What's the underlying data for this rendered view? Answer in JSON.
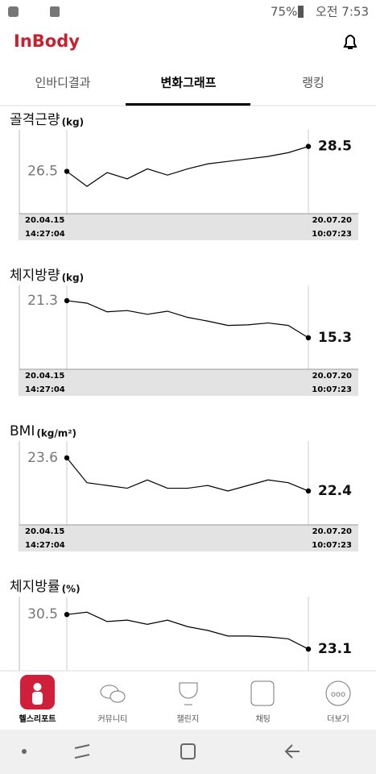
{
  "status_bar": {
    "battery": "75%",
    "time": "오전 7:53"
  },
  "header": {
    "logo": "InBody"
  },
  "tabs": [
    "인바디결과",
    "변화그래프",
    "랭킹"
  ],
  "chart_data": [
    {
      "type": "line",
      "title": "골격근량",
      "unit": "(kg)",
      "color": "#000000",
      "values": [
        26.5,
        25.3,
        26.4,
        25.9,
        26.7,
        26.2,
        26.7,
        27.1,
        27.3,
        27.5,
        27.7,
        28.0,
        28.5
      ],
      "ylim": [
        23.3,
        29.9
      ],
      "start": {
        "date": "20.04.15",
        "time": "14:27:04"
      },
      "end": {
        "date": "20.07.20",
        "time": "10:07:23"
      }
    },
    {
      "type": "line",
      "title": "체지방량",
      "unit": "(kg)",
      "color": "#000000",
      "values": [
        21.3,
        20.9,
        19.5,
        19.7,
        19.1,
        19.6,
        18.6,
        18.0,
        17.3,
        17.4,
        17.7,
        17.3,
        15.3
      ],
      "ylim": [
        10.6,
        23.9
      ],
      "start": {
        "date": "20.04.15",
        "time": "14:27:04"
      },
      "end": {
        "date": "20.07.20",
        "time": "10:07:23"
      }
    },
    {
      "type": "line",
      "title": "BMI",
      "unit": "(kg/m²)",
      "color": "#000000",
      "values": [
        23.6,
        22.7,
        22.6,
        22.5,
        22.8,
        22.5,
        22.5,
        22.6,
        22.4,
        22.6,
        22.8,
        22.7,
        22.4
      ],
      "ylim": [
        21.26,
        24.24
      ],
      "start": {
        "date": "20.04.15",
        "time": "14:27:04"
      },
      "end": {
        "date": "20.07.20",
        "time": "10:07:23"
      }
    },
    {
      "type": "line",
      "title": "체지방률",
      "unit": "(%)",
      "color": "#000000",
      "values": [
        30.5,
        31.0,
        29.0,
        29.3,
        28.4,
        29.3,
        27.9,
        27.1,
        25.9,
        25.9,
        25.7,
        25.3,
        23.1
      ],
      "ylim": [
        16.9,
        34.5
      ]
    }
  ],
  "nav": [
    "헬스리포트",
    "커뮤니티",
    "챌린지",
    "채팅",
    "더보기"
  ]
}
